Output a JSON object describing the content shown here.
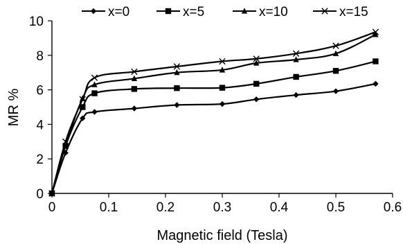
{
  "chart_data": {
    "type": "line",
    "xlabel": "Magnetic field (Tesla)",
    "ylabel": "MR %",
    "xlim": [
      0,
      0.6
    ],
    "ylim": [
      0,
      10
    ],
    "xticks": [
      0,
      0.1,
      0.2,
      0.3,
      0.4,
      0.5,
      0.6
    ],
    "xtick_labels": [
      "0",
      "0.1",
      "0.2",
      "0.3",
      "0.4",
      "0.5",
      "0.6"
    ],
    "yticks": [
      0,
      2,
      4,
      6,
      8,
      10
    ],
    "ytick_labels": [
      "0",
      "2",
      "4",
      "6",
      "8",
      "10"
    ],
    "grid": false,
    "legend_position": "top",
    "x": [
      0,
      0.024,
      0.054,
      0.075,
      0.145,
      0.22,
      0.3,
      0.36,
      0.43,
      0.5,
      0.57
    ],
    "series": [
      {
        "name": "x=0",
        "marker": "diamond",
        "color": "#000000",
        "values": [
          0,
          2.35,
          4.35,
          4.72,
          4.92,
          5.12,
          5.18,
          5.45,
          5.7,
          5.92,
          6.35
        ]
      },
      {
        "name": "x=5",
        "marker": "square",
        "color": "#000000",
        "values": [
          0,
          2.75,
          5.0,
          5.8,
          6.05,
          6.1,
          6.12,
          6.35,
          6.75,
          7.1,
          7.65
        ]
      },
      {
        "name": "x=10",
        "marker": "triangle",
        "color": "#000000",
        "values": [
          0,
          2.8,
          5.5,
          6.3,
          6.65,
          7.0,
          7.15,
          7.55,
          7.75,
          8.1,
          9.2
        ]
      },
      {
        "name": "x=15",
        "marker": "cross",
        "color": "#000000",
        "values": [
          0,
          3.0,
          5.45,
          6.7,
          7.05,
          7.35,
          7.65,
          7.8,
          8.1,
          8.55,
          9.35
        ]
      }
    ]
  }
}
